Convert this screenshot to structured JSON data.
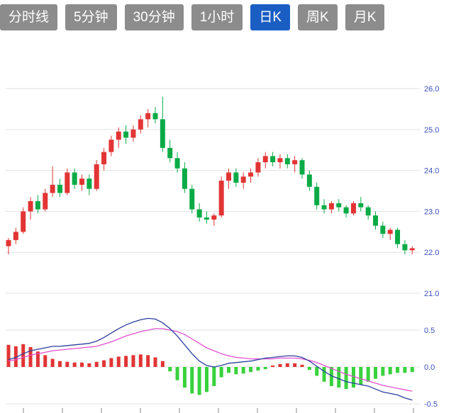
{
  "toolbar": {
    "tabs": [
      {
        "label": "分时线",
        "name": "tab-time-share",
        "active": false
      },
      {
        "label": "5分钟",
        "name": "tab-5min",
        "active": false
      },
      {
        "label": "30分钟",
        "name": "tab-30min",
        "active": false
      },
      {
        "label": "1小时",
        "name": "tab-1hour",
        "active": false
      },
      {
        "label": "日K",
        "name": "tab-daily-k",
        "active": true
      },
      {
        "label": "周K",
        "name": "tab-weekly-k",
        "active": false
      },
      {
        "label": "月K",
        "name": "tab-monthly-k",
        "active": false
      }
    ],
    "active_bg": "#1a5ec4",
    "inactive_bg": "#8c8c8c"
  },
  "colors": {
    "up": "#e23434",
    "down": "#0aab46",
    "hist_up": "#e23434",
    "hist_down": "#38d23c",
    "dif_line": "#2c3e9e",
    "dea_line": "#e24fd0",
    "grid": "#e2e2e2",
    "axis_label": "#3a50c0",
    "tick": "#8a8a8a"
  },
  "chart_data": {
    "type": "candlestick+macd",
    "title": "",
    "price_axis": {
      "ticks": [
        26.0,
        25.0,
        24.0,
        23.0,
        22.0,
        21.0
      ],
      "max": 26.0,
      "min": 21.0
    },
    "macd_axis": {
      "ticks": [
        0.5,
        0.0,
        -0.5
      ],
      "labels": [
        "0.5",
        "0.0",
        "-0.5"
      ]
    },
    "legend_position": "none",
    "grid": true,
    "candles_ohlc": [
      [
        22.15,
        22.35,
        21.95,
        22.3
      ],
      [
        22.3,
        22.6,
        22.2,
        22.5
      ],
      [
        22.5,
        23.1,
        22.45,
        23.0
      ],
      [
        23.0,
        23.35,
        22.8,
        23.25
      ],
      [
        23.25,
        23.4,
        22.95,
        23.05
      ],
      [
        23.05,
        23.55,
        23.0,
        23.45
      ],
      [
        23.45,
        24.1,
        23.35,
        23.65
      ],
      [
        23.65,
        23.8,
        23.35,
        23.45
      ],
      [
        23.45,
        24.05,
        23.4,
        23.95
      ],
      [
        23.95,
        24.05,
        23.55,
        23.65
      ],
      [
        23.65,
        23.9,
        23.5,
        23.8
      ],
      [
        23.8,
        23.9,
        23.4,
        23.55
      ],
      [
        23.55,
        24.25,
        23.5,
        24.15
      ],
      [
        24.15,
        24.55,
        24.0,
        24.45
      ],
      [
        24.45,
        24.85,
        24.35,
        24.75
      ],
      [
        24.75,
        25.05,
        24.55,
        24.95
      ],
      [
        24.95,
        25.1,
        24.65,
        24.8
      ],
      [
        24.8,
        25.1,
        24.7,
        25.0
      ],
      [
        25.0,
        25.35,
        24.9,
        25.25
      ],
      [
        25.25,
        25.5,
        25.05,
        25.4
      ],
      [
        25.4,
        25.55,
        25.15,
        25.25
      ],
      [
        25.25,
        25.8,
        24.45,
        24.55
      ],
      [
        24.55,
        24.75,
        24.2,
        24.3
      ],
      [
        24.3,
        24.45,
        23.95,
        24.05
      ],
      [
        24.05,
        24.2,
        23.45,
        23.55
      ],
      [
        23.55,
        23.65,
        22.95,
        23.05
      ],
      [
        23.05,
        23.2,
        22.75,
        22.85
      ],
      [
        22.85,
        23.0,
        22.7,
        22.8
      ],
      [
        22.8,
        22.95,
        22.65,
        22.9
      ],
      [
        22.9,
        23.85,
        22.85,
        23.75
      ],
      [
        23.75,
        24.05,
        23.55,
        23.95
      ],
      [
        23.95,
        24.05,
        23.6,
        23.7
      ],
      [
        23.7,
        23.95,
        23.55,
        23.85
      ],
      [
        23.85,
        24.05,
        23.7,
        23.95
      ],
      [
        23.95,
        24.3,
        23.85,
        24.2
      ],
      [
        24.2,
        24.45,
        24.05,
        24.35
      ],
      [
        24.35,
        24.45,
        24.1,
        24.2
      ],
      [
        24.2,
        24.4,
        24.05,
        24.3
      ],
      [
        24.3,
        24.4,
        24.05,
        24.15
      ],
      [
        24.15,
        24.35,
        23.95,
        24.25
      ],
      [
        24.25,
        24.3,
        23.8,
        23.9
      ],
      [
        23.9,
        24.0,
        23.5,
        23.6
      ],
      [
        23.6,
        23.7,
        23.05,
        23.15
      ],
      [
        23.15,
        23.3,
        22.95,
        23.05
      ],
      [
        23.05,
        23.25,
        22.95,
        23.2
      ],
      [
        23.2,
        23.3,
        23.0,
        23.1
      ],
      [
        23.1,
        23.15,
        22.85,
        22.95
      ],
      [
        22.95,
        23.25,
        22.9,
        23.2
      ],
      [
        23.2,
        23.35,
        23.0,
        23.1
      ],
      [
        23.1,
        23.15,
        22.8,
        22.9
      ],
      [
        22.9,
        23.0,
        22.55,
        22.65
      ],
      [
        22.65,
        22.75,
        22.35,
        22.45
      ],
      [
        22.45,
        22.6,
        22.3,
        22.55
      ],
      [
        22.55,
        22.6,
        22.1,
        22.2
      ],
      [
        22.2,
        22.3,
        21.95,
        22.05
      ],
      [
        22.05,
        22.15,
        21.95,
        22.1
      ]
    ],
    "macd": {
      "histogram": [
        0.3,
        0.28,
        0.31,
        0.27,
        0.21,
        0.16,
        0.11,
        0.08,
        0.07,
        0.06,
        0.06,
        0.05,
        0.07,
        0.09,
        0.12,
        0.14,
        0.15,
        0.16,
        0.17,
        0.16,
        0.13,
        0.08,
        -0.06,
        -0.18,
        -0.28,
        -0.36,
        -0.38,
        -0.34,
        -0.26,
        -0.14,
        -0.08,
        -0.1,
        -0.09,
        -0.07,
        -0.05,
        -0.03,
        0.02,
        0.04,
        0.05,
        0.05,
        0.03,
        -0.04,
        -0.12,
        -0.2,
        -0.26,
        -0.28,
        -0.3,
        -0.28,
        -0.24,
        -0.2,
        -0.16,
        -0.12,
        -0.1,
        -0.08,
        -0.08,
        -0.07
      ],
      "dif": [
        0.1,
        0.13,
        0.18,
        0.22,
        0.24,
        0.26,
        0.28,
        0.28,
        0.29,
        0.3,
        0.31,
        0.32,
        0.35,
        0.4,
        0.46,
        0.52,
        0.57,
        0.61,
        0.64,
        0.66,
        0.65,
        0.6,
        0.52,
        0.42,
        0.3,
        0.18,
        0.08,
        0.02,
        0.0,
        0.02,
        0.05,
        0.06,
        0.07,
        0.08,
        0.1,
        0.12,
        0.13,
        0.14,
        0.15,
        0.15,
        0.13,
        0.08,
        0.01,
        -0.06,
        -0.12,
        -0.16,
        -0.2,
        -0.22,
        -0.24,
        -0.26,
        -0.3,
        -0.34,
        -0.36,
        -0.38,
        -0.42,
        -0.45
      ],
      "dea": [
        0.08,
        0.1,
        0.13,
        0.16,
        0.18,
        0.2,
        0.22,
        0.23,
        0.24,
        0.25,
        0.26,
        0.27,
        0.28,
        0.31,
        0.34,
        0.38,
        0.42,
        0.45,
        0.48,
        0.5,
        0.52,
        0.52,
        0.5,
        0.48,
        0.44,
        0.38,
        0.32,
        0.26,
        0.22,
        0.18,
        0.15,
        0.13,
        0.12,
        0.11,
        0.11,
        0.11,
        0.11,
        0.12,
        0.12,
        0.12,
        0.11,
        0.09,
        0.06,
        0.02,
        -0.02,
        -0.06,
        -0.1,
        -0.13,
        -0.16,
        -0.19,
        -0.22,
        -0.25,
        -0.27,
        -0.29,
        -0.31,
        -0.33
      ]
    }
  }
}
